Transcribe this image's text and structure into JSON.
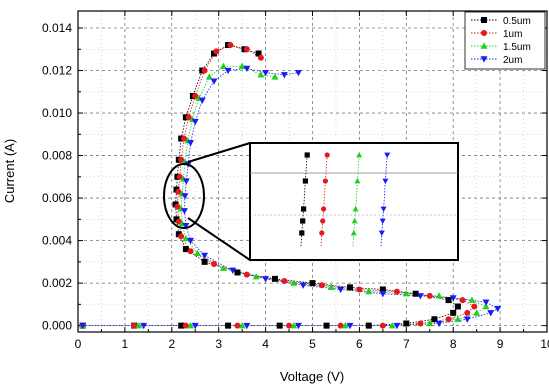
{
  "chart_data": {
    "type": "scatter",
    "title": "",
    "xlabel": "Voltage (V)",
    "ylabel": "Current (A)",
    "xlim": [
      0,
      10
    ],
    "ylim": [
      -0.0003,
      0.0148
    ],
    "x_ticks": [
      "0",
      "1",
      "2",
      "3",
      "4",
      "5",
      "6",
      "7",
      "8",
      "9",
      "10"
    ],
    "y_ticks": [
      "0.000",
      "0.002",
      "0.004",
      "0.006",
      "0.008",
      "0.010",
      "0.012",
      "0.014"
    ],
    "grid": true,
    "legend_position": "top-right",
    "series": [
      {
        "name": "0.5um",
        "color": "#000000",
        "marker": "square",
        "points": [
          [
            0.1,
            0.0
          ],
          [
            1.2,
            0.0
          ],
          [
            2.2,
            0.0
          ],
          [
            3.2,
            0.0
          ],
          [
            4.3,
            0.0
          ],
          [
            5.3,
            0.0
          ],
          [
            6.2,
            0.0
          ],
          [
            7.0,
            0.0001
          ],
          [
            7.6,
            0.0003
          ],
          [
            8.0,
            0.0006
          ],
          [
            8.1,
            0.0009
          ],
          [
            7.9,
            0.0012
          ],
          [
            7.2,
            0.0015
          ],
          [
            6.5,
            0.0017
          ],
          [
            5.8,
            0.0018
          ],
          [
            5.0,
            0.002
          ],
          [
            4.2,
            0.0022
          ],
          [
            3.4,
            0.0025
          ],
          [
            2.7,
            0.003
          ],
          [
            2.3,
            0.0036
          ],
          [
            2.15,
            0.0043
          ],
          [
            2.1,
            0.005
          ],
          [
            2.08,
            0.0057
          ],
          [
            2.1,
            0.0064
          ],
          [
            2.12,
            0.007
          ],
          [
            2.15,
            0.0078
          ],
          [
            2.2,
            0.0088
          ],
          [
            2.3,
            0.0098
          ],
          [
            2.45,
            0.0108
          ],
          [
            2.65,
            0.012
          ],
          [
            2.9,
            0.0128
          ],
          [
            3.2,
            0.0132
          ],
          [
            3.55,
            0.013
          ],
          [
            3.85,
            0.0128
          ]
        ]
      },
      {
        "name": "1um",
        "color": "#e31a1c",
        "marker": "circle",
        "points": [
          [
            0.1,
            0.0
          ],
          [
            1.2,
            0.0
          ],
          [
            2.3,
            0.0
          ],
          [
            3.4,
            0.0
          ],
          [
            4.5,
            0.0
          ],
          [
            5.6,
            0.0
          ],
          [
            6.5,
            0.0
          ],
          [
            7.3,
            0.0001
          ],
          [
            7.9,
            0.0003
          ],
          [
            8.3,
            0.0006
          ],
          [
            8.45,
            0.0009
          ],
          [
            8.2,
            0.0012
          ],
          [
            7.5,
            0.0014
          ],
          [
            6.8,
            0.0016
          ],
          [
            6.0,
            0.0017
          ],
          [
            5.2,
            0.0019
          ],
          [
            4.4,
            0.0021
          ],
          [
            3.6,
            0.0024
          ],
          [
            2.9,
            0.0029
          ],
          [
            2.4,
            0.0035
          ],
          [
            2.2,
            0.0042
          ],
          [
            2.15,
            0.0049
          ],
          [
            2.12,
            0.0056
          ],
          [
            2.14,
            0.0063
          ],
          [
            2.17,
            0.007
          ],
          [
            2.2,
            0.0078
          ],
          [
            2.26,
            0.0088
          ],
          [
            2.36,
            0.0098
          ],
          [
            2.5,
            0.0108
          ],
          [
            2.7,
            0.012
          ],
          [
            2.95,
            0.0129
          ],
          [
            3.25,
            0.0132
          ],
          [
            3.6,
            0.013
          ],
          [
            3.9,
            0.0126
          ]
        ]
      },
      {
        "name": "1.5um",
        "color": "#1fd11f",
        "marker": "triangle-up",
        "points": [
          [
            0.1,
            0.0
          ],
          [
            1.3,
            0.0
          ],
          [
            2.4,
            0.0
          ],
          [
            3.5,
            0.0
          ],
          [
            4.6,
            0.0
          ],
          [
            5.7,
            0.0
          ],
          [
            6.7,
            0.0
          ],
          [
            7.5,
            0.0001
          ],
          [
            8.1,
            0.0003
          ],
          [
            8.5,
            0.0006
          ],
          [
            8.7,
            0.0009
          ],
          [
            8.4,
            0.0012
          ],
          [
            7.7,
            0.0014
          ],
          [
            7.0,
            0.0015
          ],
          [
            6.2,
            0.0016
          ],
          [
            5.4,
            0.0018
          ],
          [
            4.6,
            0.002
          ],
          [
            3.8,
            0.0023
          ],
          [
            3.1,
            0.0027
          ],
          [
            2.55,
            0.0034
          ],
          [
            2.3,
            0.0041
          ],
          [
            2.22,
            0.0048
          ],
          [
            2.2,
            0.0055
          ],
          [
            2.22,
            0.0062
          ],
          [
            2.25,
            0.0069
          ],
          [
            2.28,
            0.0077
          ],
          [
            2.34,
            0.0087
          ],
          [
            2.44,
            0.0097
          ],
          [
            2.58,
            0.0107
          ],
          [
            2.8,
            0.0117
          ],
          [
            3.1,
            0.0122
          ],
          [
            3.5,
            0.0122
          ],
          [
            3.9,
            0.0118
          ],
          [
            4.2,
            0.0117
          ]
        ]
      },
      {
        "name": "2um",
        "color": "#1a1aff",
        "marker": "triangle-down",
        "points": [
          [
            0.1,
            0.0
          ],
          [
            1.4,
            0.0
          ],
          [
            2.5,
            0.0
          ],
          [
            3.6,
            0.0
          ],
          [
            4.7,
            0.0
          ],
          [
            5.8,
            0.0
          ],
          [
            6.8,
            0.0
          ],
          [
            7.7,
            0.0001
          ],
          [
            8.3,
            0.0003
          ],
          [
            8.8,
            0.0006
          ],
          [
            8.95,
            0.0008
          ],
          [
            8.7,
            0.0011
          ],
          [
            8.0,
            0.0013
          ],
          [
            7.3,
            0.0014
          ],
          [
            6.5,
            0.0015
          ],
          [
            5.6,
            0.0017
          ],
          [
            4.8,
            0.0019
          ],
          [
            4.0,
            0.0022
          ],
          [
            3.3,
            0.0026
          ],
          [
            2.7,
            0.0033
          ],
          [
            2.4,
            0.004
          ],
          [
            2.3,
            0.0047
          ],
          [
            2.27,
            0.0054
          ],
          [
            2.28,
            0.0061
          ],
          [
            2.31,
            0.0068
          ],
          [
            2.35,
            0.0076
          ],
          [
            2.4,
            0.0086
          ],
          [
            2.5,
            0.0096
          ],
          [
            2.65,
            0.0106
          ],
          [
            2.9,
            0.0115
          ],
          [
            3.2,
            0.012
          ],
          [
            3.6,
            0.0121
          ],
          [
            4.0,
            0.0119
          ],
          [
            4.4,
            0.0118
          ],
          [
            4.7,
            0.0119
          ]
        ]
      }
    ]
  }
}
